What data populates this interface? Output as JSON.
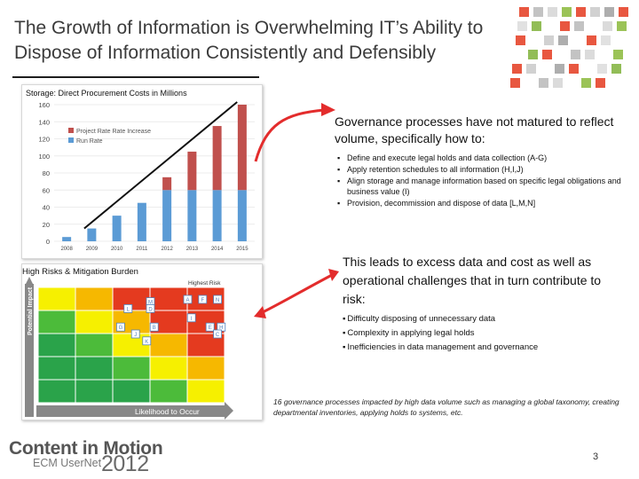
{
  "slide": {
    "title": "The Growth of Information is Overwhelming IT’s Ability to Dispose of Information Consistently and Defensibly",
    "page_number": "3"
  },
  "top_chart": {
    "title": "Storage: Direct Procurement Costs in Millions",
    "legend": [
      "Project Rate Rate Increase",
      "Run Rate"
    ],
    "colors": {
      "run": "#5b9bd5",
      "increase": "#c0504d"
    }
  },
  "chart_data": {
    "type": "bar",
    "title": "Storage: Direct Procurement Costs in Millions",
    "categories": [
      "2008",
      "2009",
      "2010",
      "2011",
      "2012",
      "2013",
      "2014",
      "2015"
    ],
    "series": [
      {
        "name": "Run Rate",
        "values": [
          5,
          15,
          30,
          45,
          60,
          60,
          60,
          60
        ]
      },
      {
        "name": "Project Rate Rate Increase",
        "values": [
          0,
          0,
          0,
          0,
          15,
          45,
          75,
          100
        ]
      }
    ],
    "ylim": [
      0,
      160
    ],
    "yticks": [
      0,
      20,
      40,
      60,
      80,
      100,
      120,
      140,
      160
    ],
    "xlabel": "",
    "ylabel": "",
    "stacked": true,
    "trend_line": true
  },
  "risk_matrix": {
    "title": "High Risks & Mitigation Burden",
    "y_axis_label": "Potential Impact",
    "x_axis_label": "Likelihood to Occur",
    "highest_risk_label": "Highest Risk",
    "markers": [
      {
        "letter": "M",
        "col": 3.0,
        "row": 0.6
      },
      {
        "letter": "A",
        "col": 4.0,
        "row": 0.5
      },
      {
        "letter": "F",
        "col": 4.4,
        "row": 0.5
      },
      {
        "letter": "N",
        "col": 4.8,
        "row": 0.5
      },
      {
        "letter": "L",
        "col": 2.4,
        "row": 0.9
      },
      {
        "letter": "D",
        "col": 3.0,
        "row": 0.9
      },
      {
        "letter": "I",
        "col": 4.1,
        "row": 1.3
      },
      {
        "letter": "G",
        "col": 2.2,
        "row": 1.7
      },
      {
        "letter": "B",
        "col": 3.1,
        "row": 1.7
      },
      {
        "letter": "E",
        "col": 4.6,
        "row": 1.7
      },
      {
        "letter": "H",
        "col": 4.9,
        "row": 1.7
      },
      {
        "letter": "J",
        "col": 2.6,
        "row": 2.0
      },
      {
        "letter": "C",
        "col": 4.8,
        "row": 2.0
      },
      {
        "letter": "K",
        "col": 2.9,
        "row": 2.3
      }
    ]
  },
  "governance": {
    "heading": "Governance processes have not matured to reflect volume, specifically how to:",
    "bullets": [
      "Define and execute legal holds and data collection (A-G)",
      "Apply retention schedules to all information (H,I,J)",
      "Align storage and manage information based on specific legal obligations and business value (I)",
      "Provision, decommission and dispose of data [L,M,N]"
    ]
  },
  "leads": {
    "heading": "This leads to excess data and cost as well as operational challenges that in turn contribute to risk:",
    "bullets": [
      "Difficulty disposing of unnecessary data",
      "Complexity in applying legal holds",
      "Inefficiencies in data management and governance"
    ]
  },
  "footnote": "16 governance processes impacted by high data volume such as managing a global taxonomy, creating departmental inventories, applying holds to systems, etc.",
  "logo": {
    "main": "Content in Motion",
    "sub": "ECM UserNet",
    "year": "2012"
  }
}
